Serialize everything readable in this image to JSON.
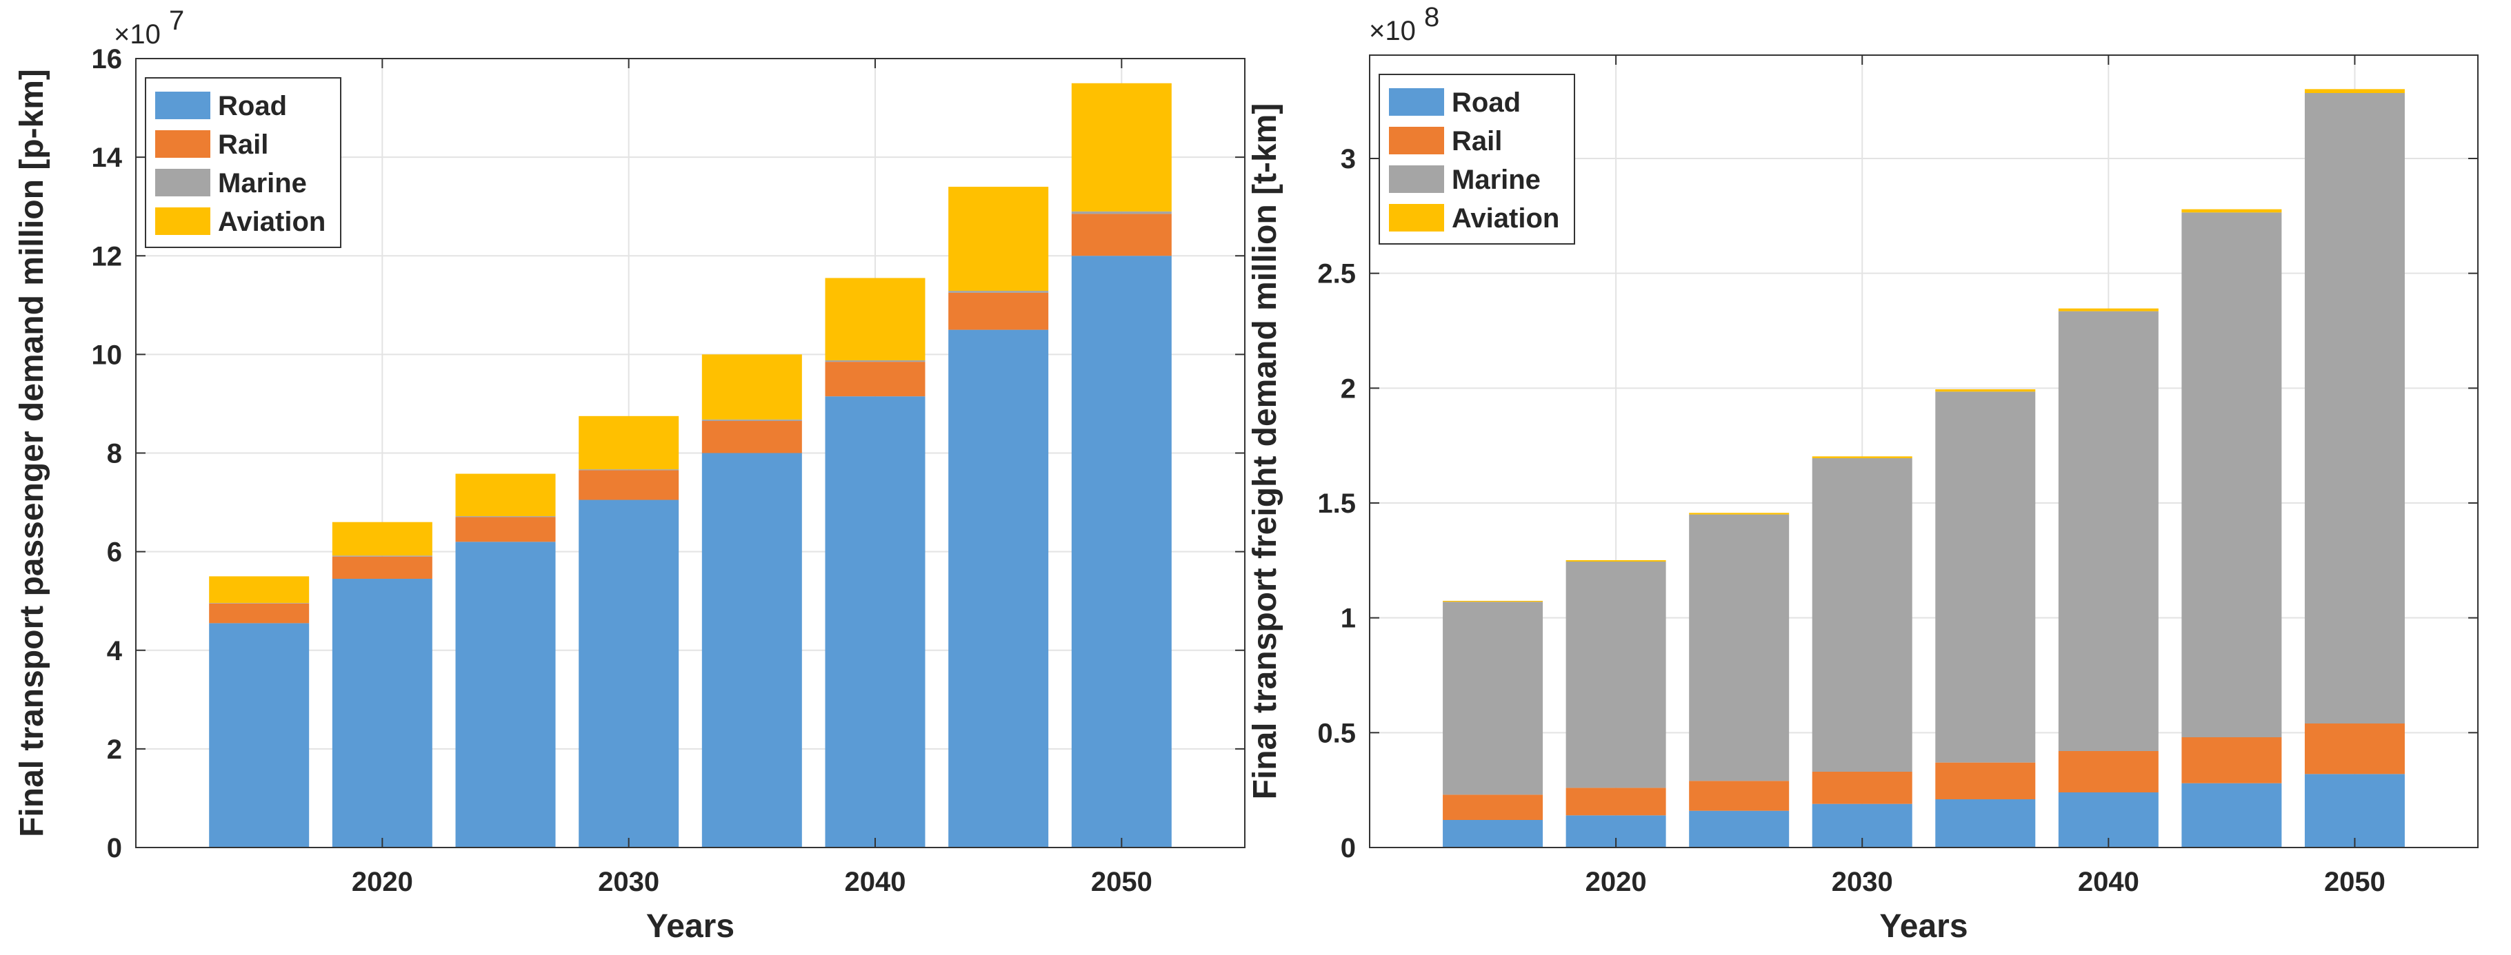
{
  "colors": {
    "Road": "#5b9bd5",
    "Rail": "#ed7d31",
    "Marine": "#a5a5a5",
    "Aviation": "#ffc000",
    "grid": "#e3e3e3",
    "axis": "#262626"
  },
  "chart_data": [
    {
      "type": "bar",
      "stacked": true,
      "title": "",
      "xlabel": "Years",
      "ylabel": "Final transport passenger demand million [p-km]",
      "exponent_label": "×10",
      "exponent_power": "7",
      "x": [
        2015,
        2020,
        2025,
        2030,
        2035,
        2040,
        2045,
        2050
      ],
      "xlim": [
        2010,
        2055
      ],
      "xticks": [
        2020,
        2030,
        2040,
        2050
      ],
      "xtick_labels": [
        "2020",
        "2030",
        "2040",
        "2050"
      ],
      "ylim": [
        0,
        16
      ],
      "yticks": [
        0,
        2,
        4,
        6,
        8,
        10,
        12,
        14,
        16
      ],
      "ytick_labels": [
        "0",
        "2",
        "4",
        "6",
        "8",
        "10",
        "12",
        "14",
        "16"
      ],
      "grid": true,
      "legend": "top-left",
      "series": [
        {
          "name": "Road",
          "values": [
            4.55,
            5.45,
            6.2,
            7.05,
            8.0,
            9.15,
            10.5,
            12.0
          ]
        },
        {
          "name": "Rail",
          "values": [
            0.4,
            0.45,
            0.5,
            0.6,
            0.65,
            0.7,
            0.75,
            0.85
          ]
        },
        {
          "name": "Marine",
          "values": [
            0.01,
            0.02,
            0.02,
            0.02,
            0.03,
            0.03,
            0.04,
            0.05
          ]
        },
        {
          "name": "Aviation",
          "values": [
            0.54,
            0.68,
            0.86,
            1.08,
            1.32,
            1.67,
            2.11,
            2.6
          ]
        }
      ]
    },
    {
      "type": "bar",
      "stacked": true,
      "title": "",
      "xlabel": "Years",
      "ylabel": "Final transport freight demand million [t-km]",
      "exponent_label": "×10",
      "exponent_power": "8",
      "x": [
        2015,
        2020,
        2025,
        2030,
        2035,
        2040,
        2045,
        2050
      ],
      "xlim": [
        2010,
        2055
      ],
      "xticks": [
        2020,
        2030,
        2040,
        2050
      ],
      "xtick_labels": [
        "2020",
        "2030",
        "2040",
        "2050"
      ],
      "ylim": [
        0,
        3.45
      ],
      "yticks": [
        0,
        0.5,
        1,
        1.5,
        2,
        2.5,
        3
      ],
      "ytick_labels": [
        "0",
        "0.5",
        "1",
        "1.5",
        "2",
        "2.5",
        "3"
      ],
      "grid": true,
      "legend": "top-left",
      "series": [
        {
          "name": "Road",
          "values": [
            0.12,
            0.14,
            0.16,
            0.19,
            0.21,
            0.24,
            0.28,
            0.32
          ]
        },
        {
          "name": "Rail",
          "values": [
            0.11,
            0.12,
            0.13,
            0.14,
            0.16,
            0.18,
            0.2,
            0.22
          ]
        },
        {
          "name": "Marine",
          "values": [
            0.84,
            0.985,
            1.16,
            1.365,
            1.615,
            1.915,
            2.285,
            2.745
          ]
        },
        {
          "name": "Aviation",
          "values": [
            0.004,
            0.006,
            0.007,
            0.008,
            0.01,
            0.012,
            0.014,
            0.017
          ]
        }
      ]
    }
  ]
}
